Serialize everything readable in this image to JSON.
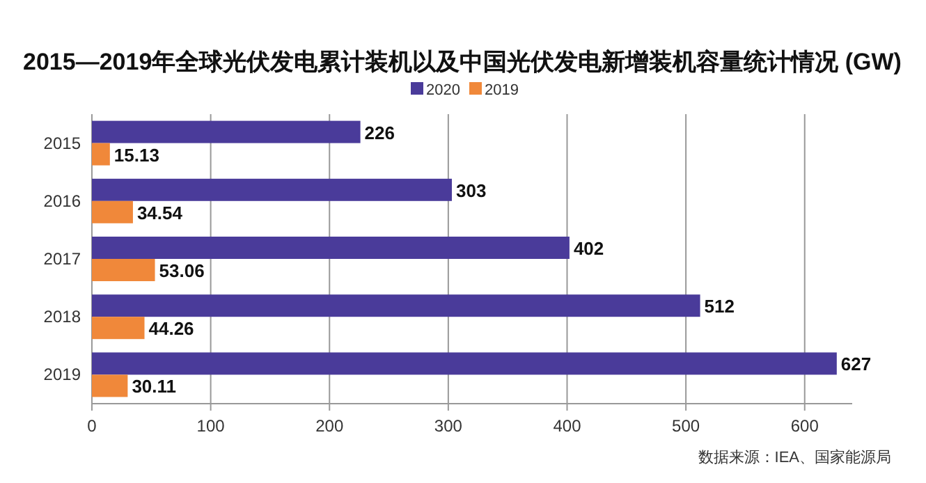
{
  "chart_data": {
    "type": "bar",
    "orientation": "horizontal",
    "title": "2015—2019年全球光伏发电累计装机以及中国光伏发电新增装机容量统计情况 (GW)",
    "categories": [
      "2015",
      "2016",
      "2017",
      "2018",
      "2019"
    ],
    "series": [
      {
        "name": "2020",
        "color": "#4a3b9a",
        "values": [
          226,
          303,
          402,
          512,
          627
        ]
      },
      {
        "name": "2019",
        "color": "#f0883a",
        "values": [
          15.13,
          34.54,
          53.06,
          44.26,
          30.11
        ]
      }
    ],
    "xlim": [
      0,
      640
    ],
    "xticks": [
      0,
      100,
      200,
      300,
      400,
      500,
      600
    ],
    "grid": "x",
    "legend": "top",
    "data_labels": true,
    "annotations": [
      "数据来源：IEA、国家能源局"
    ]
  }
}
